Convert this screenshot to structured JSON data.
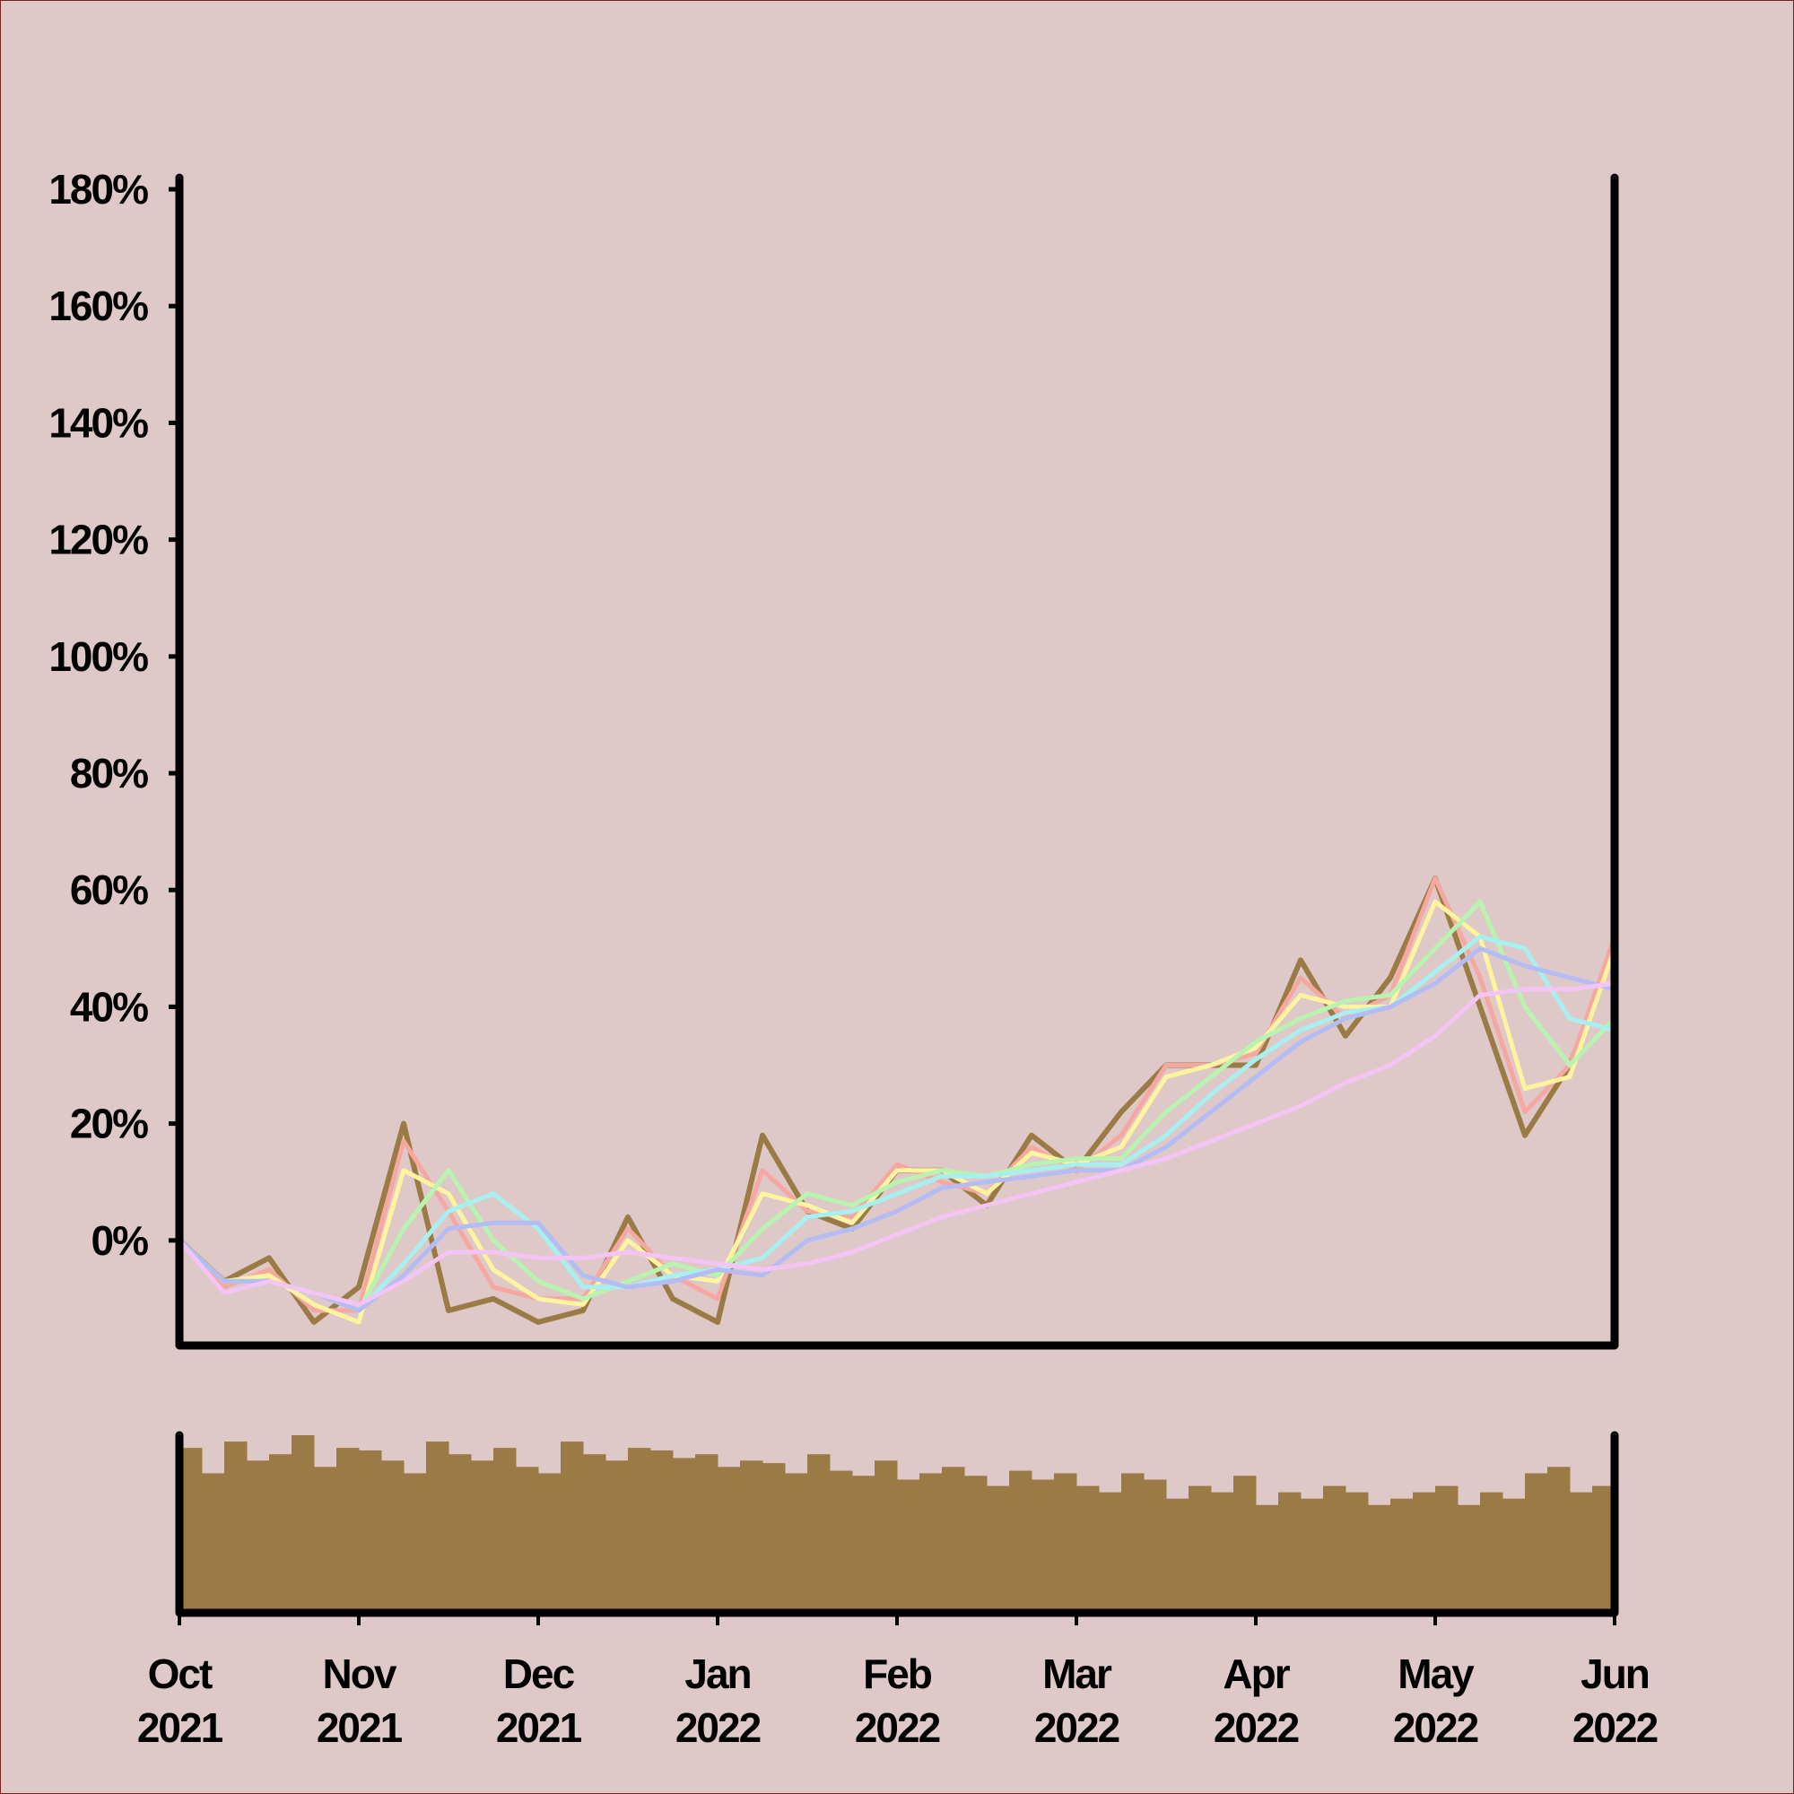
{
  "chart_data": [
    {
      "type": "line",
      "x": [
        0,
        0.25,
        0.5,
        0.75,
        1,
        1.25,
        1.5,
        1.75,
        2,
        2.25,
        2.5,
        2.75,
        3,
        3.25,
        3.5,
        3.75,
        4,
        4.25,
        4.5,
        4.75,
        5,
        5.25,
        5.5,
        5.75,
        6,
        6.25,
        6.5,
        6.75,
        7,
        7.25,
        7.5,
        7.75,
        8
      ],
      "series": [
        {
          "color": "#9b7b45",
          "values": [
            0,
            -7,
            -3,
            -14,
            -8,
            20,
            -12,
            -10,
            -14,
            -12,
            4,
            -10,
            -14,
            18,
            5,
            2,
            12,
            12,
            6,
            18,
            12,
            22,
            30,
            30,
            30,
            48,
            35,
            45,
            62,
            40,
            18,
            30,
            50
          ]
        },
        {
          "color": "#f6a8a0",
          "values": [
            0,
            -8,
            -5,
            -12,
            -12,
            17,
            5,
            -8,
            -10,
            -10,
            2,
            -6,
            -10,
            12,
            5,
            4,
            13,
            10,
            8,
            16,
            12,
            18,
            30,
            30,
            32,
            45,
            38,
            42,
            62,
            45,
            22,
            30,
            52
          ]
        },
        {
          "color": "#fef4a0",
          "values": [
            0,
            -7,
            -6,
            -11,
            -14,
            12,
            8,
            -5,
            -10,
            -11,
            0,
            -6,
            -7,
            8,
            6,
            3,
            12,
            12,
            8,
            15,
            13,
            16,
            28,
            30,
            33,
            42,
            40,
            40,
            58,
            52,
            26,
            28,
            50
          ]
        },
        {
          "color": "#b8f4b0",
          "values": [
            0,
            -7,
            -7,
            -9,
            -12,
            2,
            12,
            0,
            -7,
            -10,
            -7,
            -4,
            -6,
            2,
            8,
            6,
            10,
            12,
            11,
            13,
            14,
            14,
            22,
            28,
            34,
            38,
            41,
            42,
            50,
            58,
            40,
            30,
            38
          ]
        },
        {
          "color": "#a8f0f0",
          "values": [
            0,
            -7,
            -7,
            -9,
            -12,
            -4,
            5,
            8,
            2,
            -8,
            -8,
            -6,
            -5,
            -3,
            4,
            5,
            8,
            11,
            11,
            12,
            13,
            13,
            18,
            25,
            31,
            36,
            39,
            40,
            46,
            52,
            50,
            38,
            36
          ]
        },
        {
          "color": "#b4bcf4",
          "values": [
            0,
            -7,
            -7,
            -9,
            -12,
            -6,
            2,
            3,
            3,
            -6,
            -8,
            -7,
            -5,
            -6,
            0,
            2,
            5,
            9,
            10,
            11,
            12,
            12,
            16,
            22,
            28,
            34,
            38,
            40,
            44,
            50,
            47,
            45,
            43
          ]
        },
        {
          "color": "#f4c4f4",
          "values": [
            0,
            -9,
            -7,
            -9,
            -11,
            -7,
            -2,
            -2,
            -3,
            -3,
            -2,
            -3,
            -4,
            -5,
            -4,
            -2,
            1,
            4,
            6,
            8,
            10,
            12,
            14,
            17,
            20,
            23,
            27,
            30,
            35,
            42,
            43,
            43,
            44
          ]
        }
      ],
      "xlim": [
        0,
        8
      ],
      "ylim": [
        -18,
        182
      ],
      "yticks": [
        {
          "value": 0,
          "label": "0%"
        },
        {
          "value": 20,
          "label": "20%"
        },
        {
          "value": 40,
          "label": "40%"
        },
        {
          "value": 60,
          "label": "60%"
        },
        {
          "value": 80,
          "label": "80%"
        },
        {
          "value": 100,
          "label": "100%"
        },
        {
          "value": 120,
          "label": "120%"
        },
        {
          "value": 140,
          "label": "140%"
        },
        {
          "value": 160,
          "label": "160%"
        },
        {
          "value": 180,
          "label": "180%"
        }
      ]
    },
    {
      "type": "bar",
      "color": "#9b7b45",
      "x": [
        0,
        0.125,
        0.25,
        0.375,
        0.5,
        0.625,
        0.75,
        0.875,
        1,
        1.125,
        1.25,
        1.375,
        1.5,
        1.625,
        1.75,
        1.875,
        2,
        2.125,
        2.25,
        2.375,
        2.5,
        2.625,
        2.75,
        2.875,
        3,
        3.125,
        3.25,
        3.375,
        3.5,
        3.625,
        3.75,
        3.875,
        4,
        4.125,
        4.25,
        4.375,
        4.5,
        4.625,
        4.75,
        4.875,
        5,
        5.125,
        5.25,
        5.375,
        5.5,
        5.625,
        5.75,
        5.875,
        6,
        6.125,
        6.25,
        6.375,
        6.5,
        6.625,
        6.75,
        6.875,
        7,
        7.125,
        7.25,
        7.375,
        7.5,
        7.625,
        7.75,
        7.875
      ],
      "values": [
        130,
        110,
        135,
        120,
        125,
        140,
        115,
        130,
        128,
        120,
        110,
        135,
        125,
        120,
        130,
        115,
        110,
        135,
        125,
        120,
        130,
        128,
        122,
        125,
        115,
        120,
        118,
        110,
        125,
        112,
        108,
        120,
        105,
        110,
        115,
        108,
        100,
        112,
        105,
        110,
        100,
        95,
        110,
        105,
        90,
        100,
        95,
        108,
        85,
        95,
        90,
        100,
        95,
        85,
        90,
        95,
        100,
        85,
        95,
        90,
        110,
        115,
        95,
        100
      ],
      "xlim": [
        0,
        8
      ],
      "xticks": [
        {
          "value": 0,
          "label": [
            "Oct",
            "2021"
          ]
        },
        {
          "value": 1,
          "label": [
            "Nov",
            "2021"
          ]
        },
        {
          "value": 2,
          "label": [
            "Dec",
            "2021"
          ]
        },
        {
          "value": 3,
          "label": [
            "Jan",
            "2022"
          ]
        },
        {
          "value": 4,
          "label": [
            "Feb",
            "2022"
          ]
        },
        {
          "value": 5,
          "label": [
            "Mar",
            "2022"
          ]
        },
        {
          "value": 6,
          "label": [
            "Apr",
            "2022"
          ]
        },
        {
          "value": 7,
          "label": [
            "May",
            "2022"
          ]
        },
        {
          "value": 8,
          "label": [
            "Jun",
            "2022"
          ]
        }
      ]
    }
  ]
}
